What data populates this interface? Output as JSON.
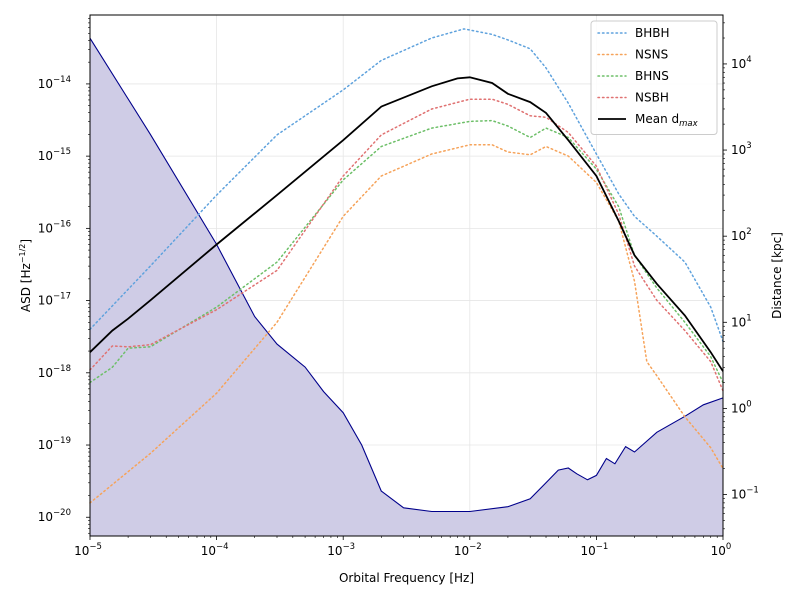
{
  "chart_data": {
    "type": "line",
    "xlabel": "Orbital Frequency [Hz]",
    "ylabel_left": "ASD [Hz",
    "ylabel_left_sup": "−1/2",
    "ylabel_left_close": "]",
    "ylabel_right": "Distance [kpc]",
    "x_scale": "log",
    "y_left_scale": "log",
    "y_right_scale": "log",
    "xlim": [
      1e-05,
      1
    ],
    "ylim_left": [
      5.5e-21,
      9e-14
    ],
    "ylim_right": [
      0.033,
      37000
    ],
    "grid": true,
    "legend_position": "top-right",
    "x_ticks": [
      {
        "base": "10",
        "exp": "−5",
        "value": 1e-05
      },
      {
        "base": "10",
        "exp": "−4",
        "value": 0.0001
      },
      {
        "base": "10",
        "exp": "−3",
        "value": 0.001
      },
      {
        "base": "10",
        "exp": "−2",
        "value": 0.01
      },
      {
        "base": "10",
        "exp": "−1",
        "value": 0.1
      },
      {
        "base": "10",
        "exp": "0",
        "value": 1
      }
    ],
    "y_left_ticks": [
      {
        "base": "10",
        "exp": "−20",
        "value": 1e-20
      },
      {
        "base": "10",
        "exp": "−19",
        "value": 1e-19
      },
      {
        "base": "10",
        "exp": "−18",
        "value": 1e-18
      },
      {
        "base": "10",
        "exp": "−17",
        "value": 1e-17
      },
      {
        "base": "10",
        "exp": "−16",
        "value": 1e-16
      },
      {
        "base": "10",
        "exp": "−15",
        "value": 1e-15
      },
      {
        "base": "10",
        "exp": "−14",
        "value": 1e-14
      }
    ],
    "y_right_ticks": [
      {
        "base": "10",
        "exp": "−1",
        "value": 0.1
      },
      {
        "base": "10",
        "exp": "0",
        "value": 1
      },
      {
        "base": "10",
        "exp": "1",
        "value": 10
      },
      {
        "base": "10",
        "exp": "2",
        "value": 100
      },
      {
        "base": "10",
        "exp": "3",
        "value": 1000
      },
      {
        "base": "10",
        "exp": "4",
        "value": 10000
      }
    ],
    "asd_curve": {
      "color": "#00008b",
      "fill": "#cfcce6",
      "points": [
        [
          1e-05,
          4.3e-14
        ],
        [
          3e-05,
          2e-15
        ],
        [
          0.0001,
          6e-17
        ],
        [
          0.0002,
          6e-18
        ],
        [
          0.0003,
          2.5e-18
        ],
        [
          0.0005,
          1.2e-18
        ],
        [
          0.0007,
          5.5e-19
        ],
        [
          0.001,
          2.8e-19
        ],
        [
          0.0014,
          1e-19
        ],
        [
          0.002,
          2.3e-20
        ],
        [
          0.003,
          1.35e-20
        ],
        [
          0.005,
          1.2e-20
        ],
        [
          0.01,
          1.2e-20
        ],
        [
          0.02,
          1.4e-20
        ],
        [
          0.03,
          1.8e-20
        ],
        [
          0.04,
          3e-20
        ],
        [
          0.05,
          4.5e-20
        ],
        [
          0.06,
          4.8e-20
        ],
        [
          0.07,
          4e-20
        ],
        [
          0.085,
          3.3e-20
        ],
        [
          0.1,
          3.8e-20
        ],
        [
          0.12,
          6.5e-20
        ],
        [
          0.14,
          5.5e-20
        ],
        [
          0.17,
          9.5e-20
        ],
        [
          0.2,
          8e-20
        ],
        [
          0.3,
          1.5e-19
        ],
        [
          0.5,
          2.5e-19
        ],
        [
          0.7,
          3.6e-19
        ],
        [
          1,
          4.5e-19
        ]
      ]
    },
    "series": [
      {
        "name": "BHBH",
        "color": "#5fa2dd",
        "style": "dotted",
        "points": [
          [
            1e-05,
            8.3
          ],
          [
            3e-05,
            45
          ],
          [
            0.0001,
            300
          ],
          [
            0.0003,
            1500
          ],
          [
            0.001,
            5000
          ],
          [
            0.002,
            11000
          ],
          [
            0.005,
            20000
          ],
          [
            0.009,
            25500
          ],
          [
            0.015,
            22000
          ],
          [
            0.02,
            19000
          ],
          [
            0.03,
            15000
          ],
          [
            0.04,
            9000
          ],
          [
            0.06,
            3500
          ],
          [
            0.1,
            900
          ],
          [
            0.15,
            310
          ],
          [
            0.2,
            170
          ],
          [
            0.3,
            100
          ],
          [
            0.5,
            50
          ],
          [
            0.8,
            15
          ],
          [
            1,
            6
          ]
        ]
      },
      {
        "name": "NSNS",
        "color": "#f6a35a",
        "style": "dotted",
        "points": [
          [
            1e-05,
            0.08
          ],
          [
            3e-05,
            0.3
          ],
          [
            0.0001,
            1.5
          ],
          [
            0.0003,
            10
          ],
          [
            0.001,
            170
          ],
          [
            0.002,
            500
          ],
          [
            0.005,
            900
          ],
          [
            0.01,
            1150
          ],
          [
            0.015,
            1150
          ],
          [
            0.02,
            950
          ],
          [
            0.03,
            880
          ],
          [
            0.04,
            1100
          ],
          [
            0.06,
            850
          ],
          [
            0.1,
            420
          ],
          [
            0.15,
            150
          ],
          [
            0.2,
            30
          ],
          [
            0.25,
            3.5
          ],
          [
            0.3,
            2.4
          ],
          [
            0.5,
            0.8
          ],
          [
            0.8,
            0.35
          ],
          [
            1,
            0.2
          ]
        ]
      },
      {
        "name": "BHNS",
        "color": "#6dbf68",
        "style": "dotted",
        "points": [
          [
            1e-05,
            2
          ],
          [
            1.5e-05,
            3
          ],
          [
            2e-05,
            5
          ],
          [
            3e-05,
            5.2
          ],
          [
            0.0001,
            15
          ],
          [
            0.0003,
            50
          ],
          [
            0.001,
            450
          ],
          [
            0.002,
            1100
          ],
          [
            0.005,
            1800
          ],
          [
            0.01,
            2150
          ],
          [
            0.015,
            2200
          ],
          [
            0.02,
            1900
          ],
          [
            0.03,
            1400
          ],
          [
            0.04,
            1800
          ],
          [
            0.06,
            1400
          ],
          [
            0.1,
            600
          ],
          [
            0.15,
            220
          ],
          [
            0.2,
            60
          ],
          [
            0.3,
            25
          ],
          [
            0.5,
            10
          ],
          [
            0.8,
            4
          ],
          [
            1,
            2
          ]
        ]
      },
      {
        "name": "NSBH",
        "color": "#e07272",
        "style": "dotted",
        "points": [
          [
            1e-05,
            2.8
          ],
          [
            1.5e-05,
            5.3
          ],
          [
            2e-05,
            5.2
          ],
          [
            3e-05,
            5.5
          ],
          [
            0.0001,
            14
          ],
          [
            0.0003,
            40
          ],
          [
            0.001,
            500
          ],
          [
            0.002,
            1500
          ],
          [
            0.005,
            3000
          ],
          [
            0.01,
            3900
          ],
          [
            0.015,
            3900
          ],
          [
            0.02,
            3400
          ],
          [
            0.03,
            2500
          ],
          [
            0.04,
            2400
          ],
          [
            0.06,
            1600
          ],
          [
            0.1,
            650
          ],
          [
            0.15,
            180
          ],
          [
            0.2,
            45
          ],
          [
            0.3,
            18
          ],
          [
            0.5,
            8
          ],
          [
            0.8,
            3.5
          ],
          [
            1,
            1.6
          ]
        ]
      },
      {
        "name": "Mean d",
        "name_sub": "max",
        "color": "#000000",
        "style": "solid",
        "points": [
          [
            1e-05,
            4.5
          ],
          [
            1.5e-05,
            8
          ],
          [
            2e-05,
            11
          ],
          [
            3e-05,
            18
          ],
          [
            0.0001,
            80
          ],
          [
            0.0003,
            300
          ],
          [
            0.001,
            1300
          ],
          [
            0.002,
            3200
          ],
          [
            0.005,
            5500
          ],
          [
            0.008,
            6800
          ],
          [
            0.01,
            7000
          ],
          [
            0.015,
            6000
          ],
          [
            0.02,
            4500
          ],
          [
            0.03,
            3600
          ],
          [
            0.04,
            2700
          ],
          [
            0.06,
            1300
          ],
          [
            0.1,
            500
          ],
          [
            0.15,
            150
          ],
          [
            0.2,
            60
          ],
          [
            0.3,
            28
          ],
          [
            0.5,
            12
          ],
          [
            0.8,
            4.5
          ],
          [
            1,
            2.7
          ]
        ]
      }
    ]
  }
}
